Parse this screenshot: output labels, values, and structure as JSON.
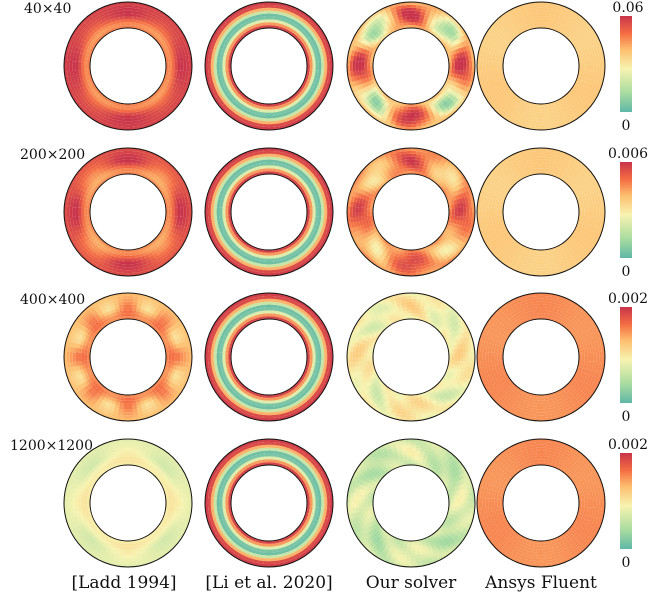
{
  "figure": {
    "column_labels": [
      "[Ladd 1994]",
      "[Li et al. 2020]",
      "Our solver",
      "Ansys Fluent"
    ],
    "rows": [
      {
        "grid_label": "40×40",
        "colorbar": {
          "max_label": "0.06",
          "min_label": "0"
        },
        "panels": [
          {
            "style": "ladd",
            "base_level": 0.95,
            "inner_level": 0.55,
            "noise": 0.15
          },
          {
            "style": "li",
            "base_level": 0.95,
            "inner_level": 0.45,
            "noise": 0.0
          },
          {
            "style": "ours",
            "base_level": 0.6,
            "inner_level": 0.5,
            "noise": 0.45
          },
          {
            "style": "fluent",
            "base_level": 0.55,
            "inner_level": 0.55,
            "noise": 0.0
          }
        ]
      },
      {
        "grid_label": "200×200",
        "colorbar": {
          "max_label": "0.006",
          "min_label": "0"
        },
        "panels": [
          {
            "style": "ladd",
            "base_level": 0.9,
            "inner_level": 0.55,
            "noise": 0.3
          },
          {
            "style": "li",
            "base_level": 0.95,
            "inner_level": 0.45,
            "noise": 0.0
          },
          {
            "style": "ours",
            "base_level": 0.7,
            "inner_level": 0.45,
            "noise": 0.25
          },
          {
            "style": "fluent",
            "base_level": 0.55,
            "inner_level": 0.55,
            "noise": 0.0
          }
        ]
      },
      {
        "grid_label": "400×400",
        "colorbar": {
          "max_label": "0.002",
          "min_label": "0"
        },
        "panels": [
          {
            "style": "ladd",
            "base_level": 0.6,
            "inner_level": 0.85,
            "noise": 0.3
          },
          {
            "style": "li",
            "base_level": 0.95,
            "inner_level": 0.45,
            "noise": 0.0
          },
          {
            "style": "ours",
            "base_level": 0.42,
            "inner_level": 0.48,
            "noise": 0.1
          },
          {
            "style": "fluent",
            "base_level": 0.72,
            "inner_level": 0.72,
            "noise": 0.0
          }
        ]
      },
      {
        "grid_label": "1200×1200",
        "colorbar": {
          "max_label": "0.002",
          "min_label": "0"
        },
        "panels": [
          {
            "style": "ladd",
            "base_level": 0.35,
            "inner_level": 0.5,
            "noise": 0.12
          },
          {
            "style": "li",
            "base_level": 0.95,
            "inner_level": 0.45,
            "noise": 0.0
          },
          {
            "style": "ours",
            "base_level": 0.3,
            "inner_level": 0.35,
            "noise": 0.08
          },
          {
            "style": "fluent",
            "base_level": 0.72,
            "inner_level": 0.72,
            "noise": 0.0
          }
        ]
      }
    ],
    "colors": {
      "scale": [
        "#5fb7a6",
        "#a9dca0",
        "#f7f3b0",
        "#fdbf6f",
        "#f46d43",
        "#c9344a"
      ],
      "outline": "#111111"
    }
  }
}
